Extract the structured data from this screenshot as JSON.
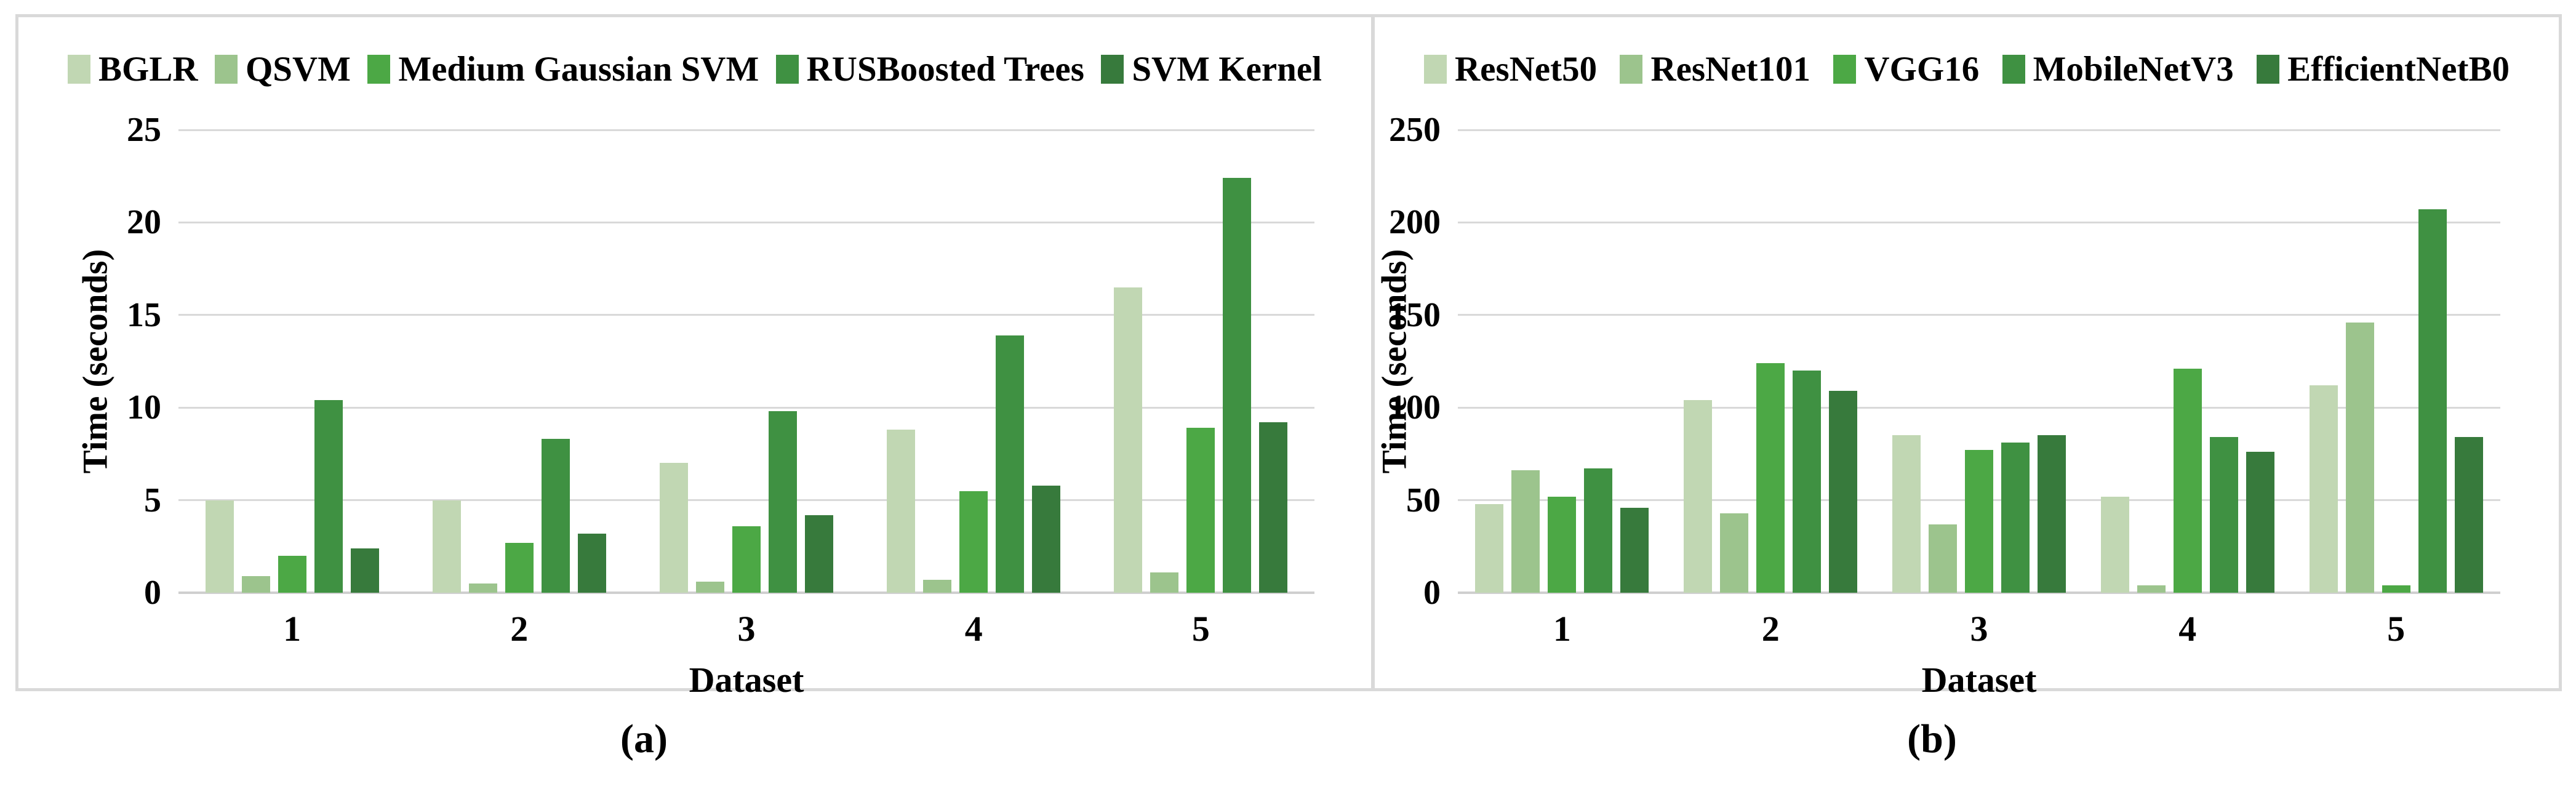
{
  "figure": {
    "background": "#ffffff",
    "panel_border_color": "#d9d9d9",
    "gridline_color": "#d9d9d9",
    "axis_line_color": "#cfcfcf",
    "text_color": "#000000"
  },
  "chart_data": [
    {
      "type": "bar",
      "caption": "(a)",
      "title": "",
      "xlabel": "Dataset",
      "ylabel": "Time (seconds)",
      "categories": [
        "1",
        "2",
        "3",
        "4",
        "5"
      ],
      "ylim": [
        0,
        25
      ],
      "yticks": [
        0,
        5,
        10,
        15,
        20,
        25
      ],
      "grid": true,
      "legend_position": "top",
      "series": [
        {
          "name": "BGLR",
          "color": "#c1d7b3",
          "values": [
            5.0,
            5.0,
            7.0,
            8.8,
            16.5
          ]
        },
        {
          "name": "QSVM",
          "color": "#9cc48d",
          "values": [
            0.9,
            0.5,
            0.6,
            0.7,
            1.1
          ]
        },
        {
          "name": "Medium Gaussian SVM",
          "color": "#4ca845",
          "values": [
            2.0,
            2.7,
            3.6,
            5.5,
            8.9
          ]
        },
        {
          "name": "RUSBoosted Trees",
          "color": "#3f9142",
          "values": [
            10.4,
            8.3,
            9.8,
            13.9,
            22.4
          ]
        },
        {
          "name": "SVM Kernel",
          "color": "#377a3c",
          "values": [
            2.4,
            3.2,
            4.2,
            5.8,
            9.2
          ]
        }
      ]
    },
    {
      "type": "bar",
      "caption": "(b)",
      "title": "",
      "xlabel": "Dataset",
      "ylabel": "Time (seconds)",
      "categories": [
        "1",
        "2",
        "3",
        "4",
        "5"
      ],
      "ylim": [
        0,
        250
      ],
      "yticks": [
        0,
        50,
        100,
        150,
        200,
        250
      ],
      "grid": true,
      "legend_position": "top",
      "series": [
        {
          "name": "ResNet50",
          "color": "#c1d7b3",
          "values": [
            48,
            104,
            85,
            52,
            112
          ]
        },
        {
          "name": "ResNet101",
          "color": "#9cc48d",
          "values": [
            66,
            43,
            37,
            4,
            146
          ]
        },
        {
          "name": "VGG16",
          "color": "#4ca845",
          "values": [
            52,
            124,
            77,
            121,
            4
          ]
        },
        {
          "name": "MobileNetV3",
          "color": "#3f9142",
          "values": [
            67,
            120,
            81,
            84,
            207
          ]
        },
        {
          "name": "EfficientNetB0",
          "color": "#377a3c",
          "values": [
            46,
            109,
            85,
            76,
            84
          ]
        }
      ]
    }
  ]
}
